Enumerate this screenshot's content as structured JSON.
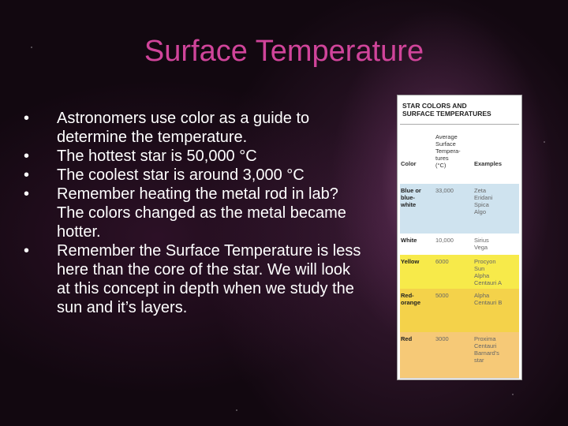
{
  "slide": {
    "title": "Surface Temperature",
    "bullets": [
      "Astronomers use color as a guide to determine the temperature.",
      "The hottest star is 50,000 °C",
      "The coolest star is around 3,000 °C",
      "Remember heating the metal rod in lab? The colors changed as the metal became hotter.",
      "Remember the Surface Temperature is less here than the core of the star. We will look at this concept in depth when we study the sun and it’s layers."
    ],
    "table": {
      "title": [
        "STAR COLORS AND",
        "SURFACE TEMPERATURES"
      ],
      "headers": [
        [
          "Color"
        ],
        [
          "Average",
          "Surface",
          "Tempera-",
          "tures",
          "(°C)"
        ],
        [
          "Examples"
        ]
      ],
      "rows": [
        [
          [
            "Blue or",
            "blue-",
            "white"
          ],
          [
            "33,000"
          ],
          [
            "Zeta",
            "Eridani",
            "Spica",
            "Algo"
          ]
        ],
        [
          [
            "White"
          ],
          [
            "10,000"
          ],
          [
            "Sirius",
            "Vega"
          ]
        ],
        [
          [
            "Yellow"
          ],
          [
            "6000"
          ],
          [
            "Procyon",
            "Sun",
            "Alpha",
            "Centauri A"
          ]
        ],
        [
          [
            "Red-",
            "orange"
          ],
          [
            "5000"
          ],
          [
            "Alpha",
            "Centauri B"
          ]
        ],
        [
          [
            "Red"
          ],
          [
            "3000"
          ],
          [
            "Proxima",
            "Centauri",
            "Barnard's",
            "star"
          ]
        ]
      ]
    }
  }
}
